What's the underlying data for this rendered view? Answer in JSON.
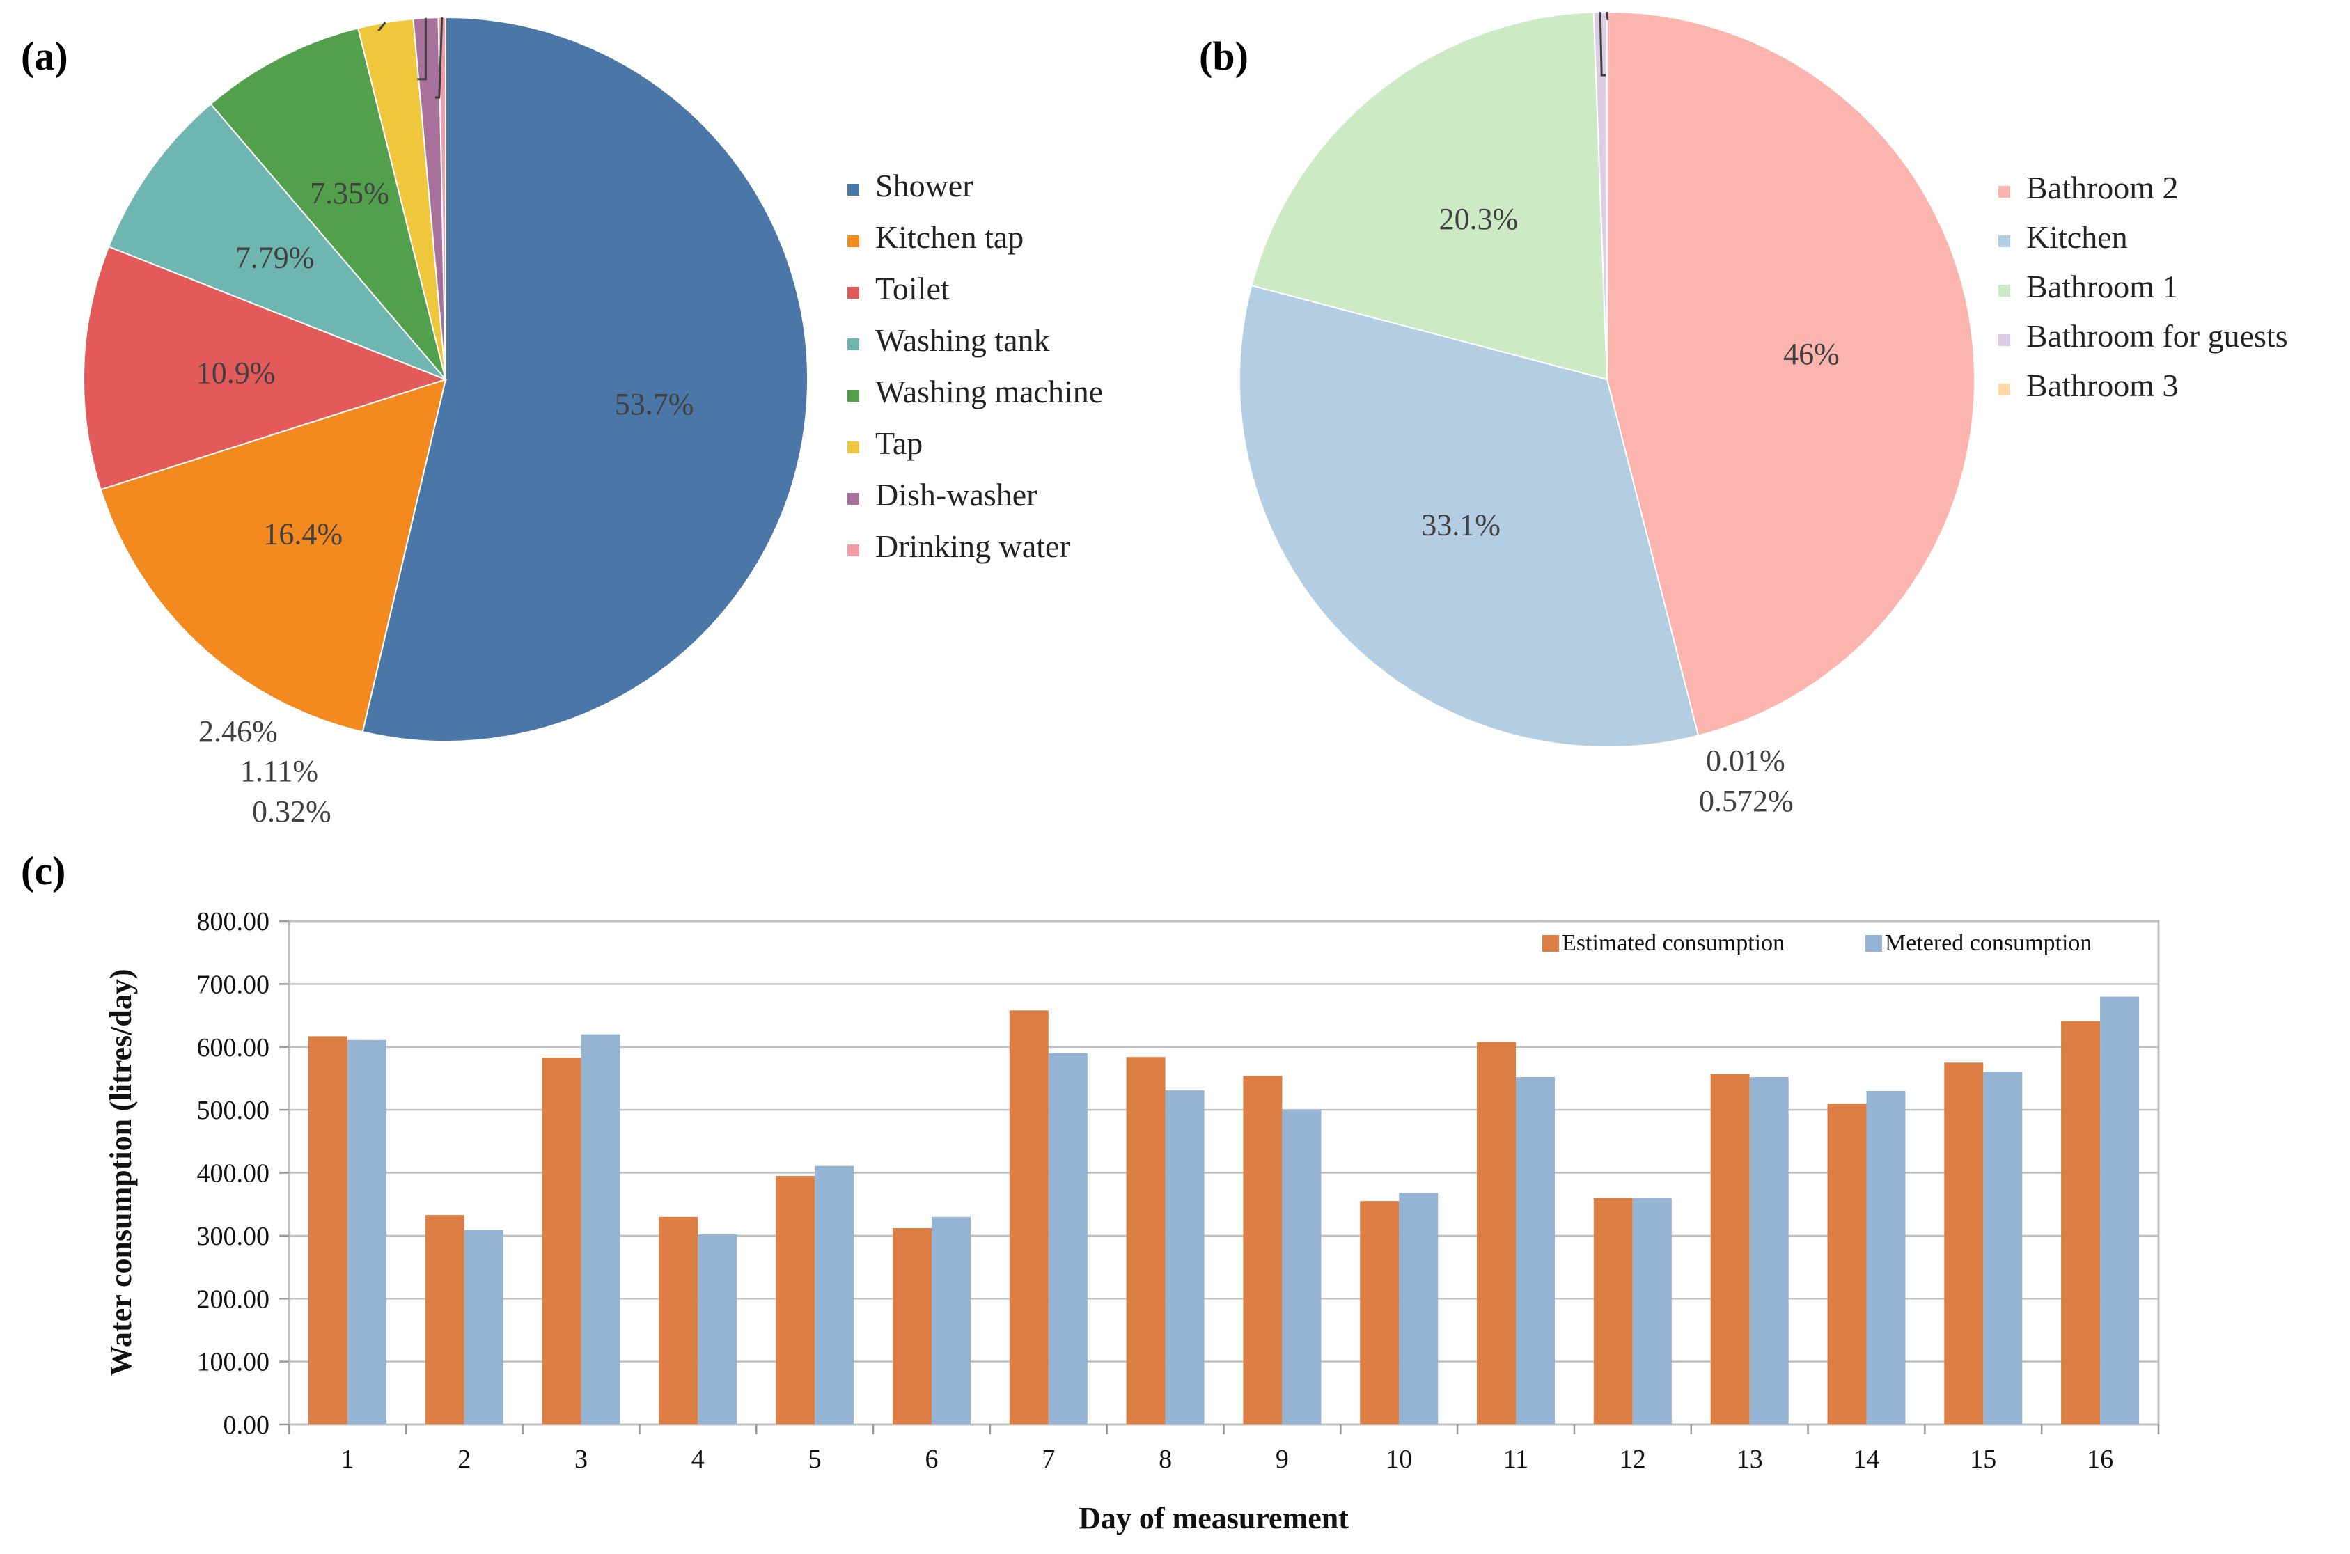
{
  "panels": {
    "a": "(a)",
    "b": "(b)",
    "c": "(c)"
  },
  "chart_data": [
    {
      "type": "pie",
      "panel": "(a)",
      "labels": [
        "Shower",
        "Kitchen tap",
        "Toilet",
        "Washing tank",
        "Washing machine",
        "Tap",
        "Dish-washer",
        "Drinking water"
      ],
      "values": [
        53.7,
        16.4,
        10.9,
        7.79,
        7.35,
        2.46,
        1.11,
        0.32
      ],
      "value_labels": [
        "53.7%",
        "16.4%",
        "10.9%",
        "7.79%",
        "7.35%",
        "2.46%",
        "1.11%",
        "0.32%"
      ],
      "colors": [
        "#4a76a8",
        "#f28a1f",
        "#e35a5a",
        "#6fb6b0",
        "#52a04c",
        "#eec73c",
        "#a8719c",
        "#f39ca6"
      ],
      "legend_position": "right"
    },
    {
      "type": "pie",
      "panel": "(b)",
      "labels": [
        "Bathroom 2",
        "Kitchen",
        "Bathroom 1",
        "Bathroom for guests",
        "Bathroom 3"
      ],
      "values": [
        46,
        33.1,
        20.3,
        0.572,
        0.01
      ],
      "value_labels": [
        "46%",
        "33.1%",
        "20.3%",
        "0.572%",
        "0.01%"
      ],
      "colors": [
        "#fbb4ae",
        "#b3cde3",
        "#ccebc5",
        "#decbe4",
        "#fed9a6"
      ],
      "legend_position": "right"
    },
    {
      "type": "bar",
      "panel": "(c)",
      "categories": [
        "1",
        "2",
        "3",
        "4",
        "5",
        "6",
        "7",
        "8",
        "9",
        "10",
        "11",
        "12",
        "13",
        "14",
        "15",
        "16"
      ],
      "series": [
        {
          "name": "Estimated consumption",
          "color": "#dd7f45",
          "values": [
            617,
            333,
            583,
            330,
            395,
            312,
            658,
            584,
            554,
            355,
            608,
            360,
            557,
            510,
            575,
            641
          ]
        },
        {
          "name": "Metered consumption",
          "color": "#95b3d3",
          "values": [
            611,
            309,
            620,
            302,
            411,
            330,
            590,
            531,
            500,
            368,
            552,
            360,
            552,
            530,
            561,
            680
          ]
        }
      ],
      "yticks": [
        "0.00",
        "100.00",
        "200.00",
        "300.00",
        "400.00",
        "500.00",
        "600.00",
        "700.00",
        "800.00"
      ],
      "ylim": [
        0,
        800
      ],
      "xlabel": "Day of measurement",
      "ylabel": "Water consumption  (litres/day)",
      "grid": true,
      "legend_position": "top-right"
    }
  ]
}
